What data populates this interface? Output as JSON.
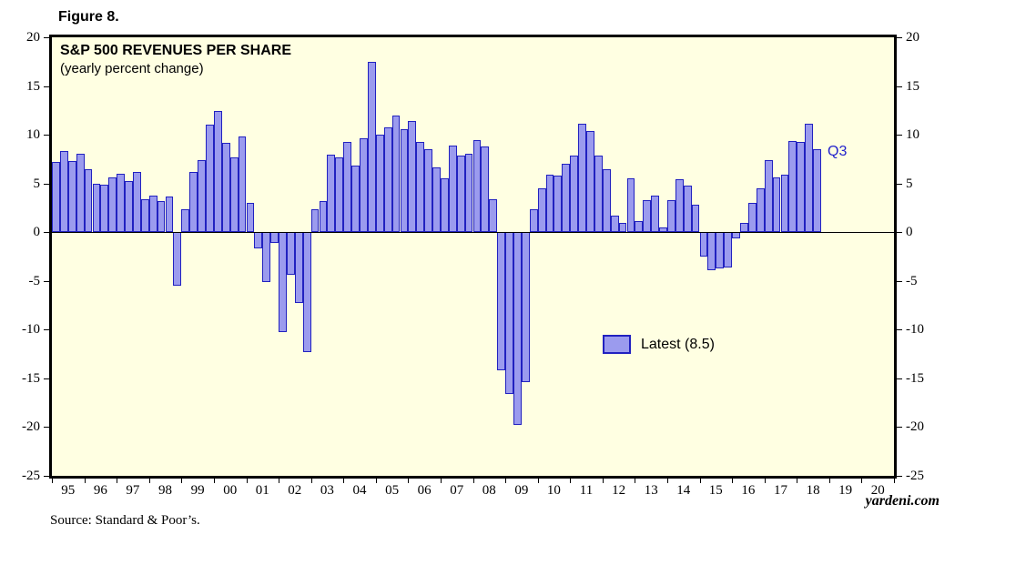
{
  "figure_label": "Figure 8.",
  "watermark": "yardeni.com",
  "source_note": "Source: Standard & Poor’s.",
  "legend": {
    "label": "Latest (8.5)",
    "swatch_fill": "#9b9bee",
    "swatch_border": "#2121c0"
  },
  "annotation": {
    "text": "Q3",
    "color": "#2222cc"
  },
  "colors": {
    "plot_background": "#ffffe2",
    "bar_fill": "#9b9bee",
    "bar_border": "#2121c0",
    "frame": "#000000"
  },
  "chart_data": {
    "type": "bar",
    "title": "S&P 500 REVENUES PER SHARE",
    "subtitle": "(yearly percent change)",
    "ylabel": "",
    "xlabel": "",
    "ylim": [
      -25,
      20
    ],
    "yticks": [
      20,
      15,
      10,
      5,
      0,
      -5,
      -10,
      -15,
      -20,
      -25
    ],
    "grid": false,
    "legend_position": "center-right",
    "frequency": "quarterly",
    "x_year_labels": [
      "95",
      "96",
      "97",
      "98",
      "99",
      "00",
      "01",
      "02",
      "03",
      "04",
      "05",
      "06",
      "07",
      "08",
      "09",
      "10",
      "11",
      "12",
      "13",
      "14",
      "15",
      "16",
      "17",
      "18",
      "19",
      "20"
    ],
    "x_axis_year_span": 26,
    "series_name": "S&P 500 revenues per share, yearly percent change",
    "latest_value": 8.5,
    "latest_quarter": "Q3",
    "data": [
      {
        "year": "1995",
        "values": [
          7.2,
          8.3,
          7.3,
          8.1
        ]
      },
      {
        "year": "1996",
        "values": [
          6.5,
          5.0,
          4.9,
          5.6
        ]
      },
      {
        "year": "1997",
        "values": [
          6.0,
          5.3,
          6.2,
          3.4
        ]
      },
      {
        "year": "1998",
        "values": [
          3.8,
          3.2,
          3.7,
          -5.5
        ]
      },
      {
        "year": "1999",
        "values": [
          2.4,
          6.2,
          7.4,
          11.0
        ]
      },
      {
        "year": "2000",
        "values": [
          12.4,
          9.2,
          7.7,
          9.8
        ]
      },
      {
        "year": "2001",
        "values": [
          3.0,
          -1.7,
          -5.1,
          -1.1
        ]
      },
      {
        "year": "2002",
        "values": [
          -10.3,
          -4.4,
          -7.3,
          -12.3
        ]
      },
      {
        "year": "2003",
        "values": [
          2.4,
          3.2,
          8.0,
          7.7
        ]
      },
      {
        "year": "2004",
        "values": [
          9.3,
          6.8,
          9.6,
          17.5
        ]
      },
      {
        "year": "2005",
        "values": [
          10.0,
          10.8,
          12.0,
          10.6
        ]
      },
      {
        "year": "2006",
        "values": [
          11.4,
          9.3,
          8.5,
          6.7
        ]
      },
      {
        "year": "2007",
        "values": [
          5.5,
          8.9,
          7.9,
          8.1
        ]
      },
      {
        "year": "2008",
        "values": [
          9.5,
          8.8,
          3.4,
          -14.2
        ]
      },
      {
        "year": "2009",
        "values": [
          -16.6,
          -19.8,
          -15.4,
          2.4
        ]
      },
      {
        "year": "2010",
        "values": [
          4.5,
          5.9,
          5.8,
          7.0
        ]
      },
      {
        "year": "2011",
        "values": [
          7.9,
          11.1,
          10.4,
          7.9
        ]
      },
      {
        "year": "2012",
        "values": [
          6.5,
          1.7,
          1.0,
          5.5
        ]
      },
      {
        "year": "2013",
        "values": [
          1.1,
          3.3,
          3.8,
          0.5
        ]
      },
      {
        "year": "2014",
        "values": [
          3.3,
          5.4,
          4.8,
          2.8
        ]
      },
      {
        "year": "2015",
        "values": [
          -2.5,
          -3.9,
          -3.7,
          -3.6
        ]
      },
      {
        "year": "2016",
        "values": [
          -0.6,
          1.0,
          3.0,
          4.5
        ]
      },
      {
        "year": "2017",
        "values": [
          7.4,
          5.6,
          5.9,
          9.4
        ]
      },
      {
        "year": "2018",
        "values": [
          9.3,
          11.1,
          8.5
        ]
      }
    ]
  }
}
